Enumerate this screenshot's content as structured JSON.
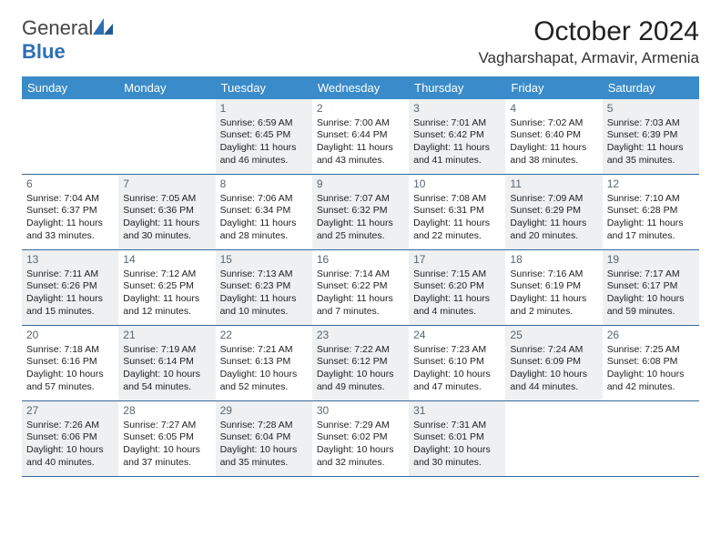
{
  "logo": {
    "text1": "General",
    "text2": "Blue"
  },
  "title": "October 2024",
  "location": "Vagharshapat, Armavir, Armenia",
  "weekdays": [
    "Sunday",
    "Monday",
    "Tuesday",
    "Wednesday",
    "Thursday",
    "Friday",
    "Saturday"
  ],
  "colors": {
    "header_bg": "#3a8bc9",
    "header_text": "#ffffff",
    "border": "#3a6a9a",
    "shaded": "#eef0f2",
    "daynum": "#5a6670",
    "logo_blue": "#2d6fb5"
  },
  "weeks": [
    [
      {
        "day": "",
        "shaded": false
      },
      {
        "day": "",
        "shaded": false
      },
      {
        "day": "1",
        "shaded": true,
        "sunrise": "Sunrise: 6:59 AM",
        "sunset": "Sunset: 6:45 PM",
        "daylight1": "Daylight: 11 hours",
        "daylight2": "and 46 minutes."
      },
      {
        "day": "2",
        "shaded": false,
        "sunrise": "Sunrise: 7:00 AM",
        "sunset": "Sunset: 6:44 PM",
        "daylight1": "Daylight: 11 hours",
        "daylight2": "and 43 minutes."
      },
      {
        "day": "3",
        "shaded": true,
        "sunrise": "Sunrise: 7:01 AM",
        "sunset": "Sunset: 6:42 PM",
        "daylight1": "Daylight: 11 hours",
        "daylight2": "and 41 minutes."
      },
      {
        "day": "4",
        "shaded": false,
        "sunrise": "Sunrise: 7:02 AM",
        "sunset": "Sunset: 6:40 PM",
        "daylight1": "Daylight: 11 hours",
        "daylight2": "and 38 minutes."
      },
      {
        "day": "5",
        "shaded": true,
        "sunrise": "Sunrise: 7:03 AM",
        "sunset": "Sunset: 6:39 PM",
        "daylight1": "Daylight: 11 hours",
        "daylight2": "and 35 minutes."
      }
    ],
    [
      {
        "day": "6",
        "shaded": false,
        "sunrise": "Sunrise: 7:04 AM",
        "sunset": "Sunset: 6:37 PM",
        "daylight1": "Daylight: 11 hours",
        "daylight2": "and 33 minutes."
      },
      {
        "day": "7",
        "shaded": true,
        "sunrise": "Sunrise: 7:05 AM",
        "sunset": "Sunset: 6:36 PM",
        "daylight1": "Daylight: 11 hours",
        "daylight2": "and 30 minutes."
      },
      {
        "day": "8",
        "shaded": false,
        "sunrise": "Sunrise: 7:06 AM",
        "sunset": "Sunset: 6:34 PM",
        "daylight1": "Daylight: 11 hours",
        "daylight2": "and 28 minutes."
      },
      {
        "day": "9",
        "shaded": true,
        "sunrise": "Sunrise: 7:07 AM",
        "sunset": "Sunset: 6:32 PM",
        "daylight1": "Daylight: 11 hours",
        "daylight2": "and 25 minutes."
      },
      {
        "day": "10",
        "shaded": false,
        "sunrise": "Sunrise: 7:08 AM",
        "sunset": "Sunset: 6:31 PM",
        "daylight1": "Daylight: 11 hours",
        "daylight2": "and 22 minutes."
      },
      {
        "day": "11",
        "shaded": true,
        "sunrise": "Sunrise: 7:09 AM",
        "sunset": "Sunset: 6:29 PM",
        "daylight1": "Daylight: 11 hours",
        "daylight2": "and 20 minutes."
      },
      {
        "day": "12",
        "shaded": false,
        "sunrise": "Sunrise: 7:10 AM",
        "sunset": "Sunset: 6:28 PM",
        "daylight1": "Daylight: 11 hours",
        "daylight2": "and 17 minutes."
      }
    ],
    [
      {
        "day": "13",
        "shaded": true,
        "sunrise": "Sunrise: 7:11 AM",
        "sunset": "Sunset: 6:26 PM",
        "daylight1": "Daylight: 11 hours",
        "daylight2": "and 15 minutes."
      },
      {
        "day": "14",
        "shaded": false,
        "sunrise": "Sunrise: 7:12 AM",
        "sunset": "Sunset: 6:25 PM",
        "daylight1": "Daylight: 11 hours",
        "daylight2": "and 12 minutes."
      },
      {
        "day": "15",
        "shaded": true,
        "sunrise": "Sunrise: 7:13 AM",
        "sunset": "Sunset: 6:23 PM",
        "daylight1": "Daylight: 11 hours",
        "daylight2": "and 10 minutes."
      },
      {
        "day": "16",
        "shaded": false,
        "sunrise": "Sunrise: 7:14 AM",
        "sunset": "Sunset: 6:22 PM",
        "daylight1": "Daylight: 11 hours",
        "daylight2": "and 7 minutes."
      },
      {
        "day": "17",
        "shaded": true,
        "sunrise": "Sunrise: 7:15 AM",
        "sunset": "Sunset: 6:20 PM",
        "daylight1": "Daylight: 11 hours",
        "daylight2": "and 4 minutes."
      },
      {
        "day": "18",
        "shaded": false,
        "sunrise": "Sunrise: 7:16 AM",
        "sunset": "Sunset: 6:19 PM",
        "daylight1": "Daylight: 11 hours",
        "daylight2": "and 2 minutes."
      },
      {
        "day": "19",
        "shaded": true,
        "sunrise": "Sunrise: 7:17 AM",
        "sunset": "Sunset: 6:17 PM",
        "daylight1": "Daylight: 10 hours",
        "daylight2": "and 59 minutes."
      }
    ],
    [
      {
        "day": "20",
        "shaded": false,
        "sunrise": "Sunrise: 7:18 AM",
        "sunset": "Sunset: 6:16 PM",
        "daylight1": "Daylight: 10 hours",
        "daylight2": "and 57 minutes."
      },
      {
        "day": "21",
        "shaded": true,
        "sunrise": "Sunrise: 7:19 AM",
        "sunset": "Sunset: 6:14 PM",
        "daylight1": "Daylight: 10 hours",
        "daylight2": "and 54 minutes."
      },
      {
        "day": "22",
        "shaded": false,
        "sunrise": "Sunrise: 7:21 AM",
        "sunset": "Sunset: 6:13 PM",
        "daylight1": "Daylight: 10 hours",
        "daylight2": "and 52 minutes."
      },
      {
        "day": "23",
        "shaded": true,
        "sunrise": "Sunrise: 7:22 AM",
        "sunset": "Sunset: 6:12 PM",
        "daylight1": "Daylight: 10 hours",
        "daylight2": "and 49 minutes."
      },
      {
        "day": "24",
        "shaded": false,
        "sunrise": "Sunrise: 7:23 AM",
        "sunset": "Sunset: 6:10 PM",
        "daylight1": "Daylight: 10 hours",
        "daylight2": "and 47 minutes."
      },
      {
        "day": "25",
        "shaded": true,
        "sunrise": "Sunrise: 7:24 AM",
        "sunset": "Sunset: 6:09 PM",
        "daylight1": "Daylight: 10 hours",
        "daylight2": "and 44 minutes."
      },
      {
        "day": "26",
        "shaded": false,
        "sunrise": "Sunrise: 7:25 AM",
        "sunset": "Sunset: 6:08 PM",
        "daylight1": "Daylight: 10 hours",
        "daylight2": "and 42 minutes."
      }
    ],
    [
      {
        "day": "27",
        "shaded": true,
        "sunrise": "Sunrise: 7:26 AM",
        "sunset": "Sunset: 6:06 PM",
        "daylight1": "Daylight: 10 hours",
        "daylight2": "and 40 minutes."
      },
      {
        "day": "28",
        "shaded": false,
        "sunrise": "Sunrise: 7:27 AM",
        "sunset": "Sunset: 6:05 PM",
        "daylight1": "Daylight: 10 hours",
        "daylight2": "and 37 minutes."
      },
      {
        "day": "29",
        "shaded": true,
        "sunrise": "Sunrise: 7:28 AM",
        "sunset": "Sunset: 6:04 PM",
        "daylight1": "Daylight: 10 hours",
        "daylight2": "and 35 minutes."
      },
      {
        "day": "30",
        "shaded": false,
        "sunrise": "Sunrise: 7:29 AM",
        "sunset": "Sunset: 6:02 PM",
        "daylight1": "Daylight: 10 hours",
        "daylight2": "and 32 minutes."
      },
      {
        "day": "31",
        "shaded": true,
        "sunrise": "Sunrise: 7:31 AM",
        "sunset": "Sunset: 6:01 PM",
        "daylight1": "Daylight: 10 hours",
        "daylight2": "and 30 minutes."
      },
      {
        "day": "",
        "shaded": false
      },
      {
        "day": "",
        "shaded": false
      }
    ]
  ]
}
